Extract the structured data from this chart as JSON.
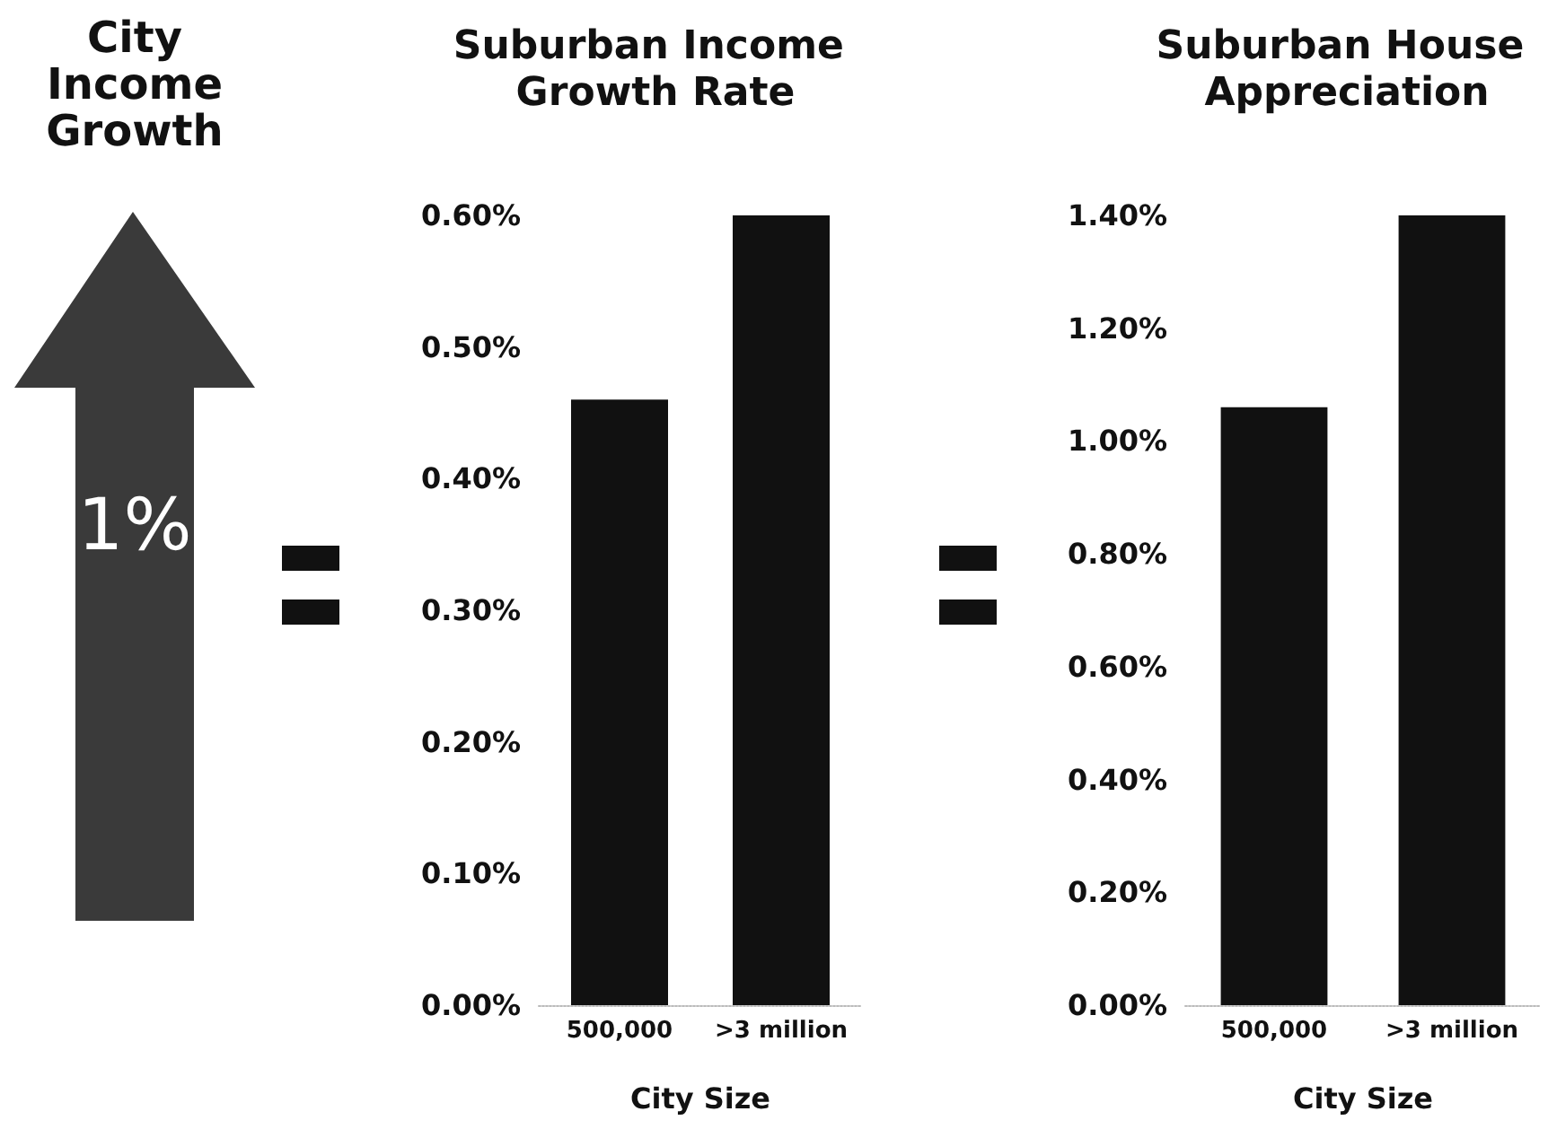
{
  "chart_data": [
    {
      "type": "other",
      "title": "City Income Growth",
      "annotations": [
        "1%"
      ]
    },
    {
      "type": "bar",
      "title": "Suburban Income Growth Rate",
      "xlabel": "City Size",
      "categories": [
        "500,000",
        ">3 million"
      ],
      "values": [
        0.46,
        0.6
      ],
      "color": "#111111",
      "ylim": [
        0,
        0.6
      ],
      "yticks": [
        {
          "value": 0,
          "label": "0.00%"
        },
        {
          "value": 0.1,
          "label": "0.10%"
        },
        {
          "value": 0.2,
          "label": "0.20%"
        },
        {
          "value": 0.3,
          "label": "0.30%"
        },
        {
          "value": 0.4,
          "label": "0.40%"
        },
        {
          "value": 0.5,
          "label": "0.50%"
        },
        {
          "value": 0.6,
          "label": "0.60%"
        }
      ],
      "grid": false
    },
    {
      "type": "bar",
      "title": "Suburban House Appreciation",
      "xlabel": "City Size",
      "categories": [
        "500,000",
        ">3 million"
      ],
      "values": [
        1.06,
        1.4
      ],
      "color": "#111111",
      "ylim": [
        0,
        1.4
      ],
      "yticks": [
        {
          "value": 0,
          "label": "0.00%"
        },
        {
          "value": 0.2,
          "label": "0.20%"
        },
        {
          "value": 0.4,
          "label": "0.40%"
        },
        {
          "value": 0.6,
          "label": "0.60%"
        },
        {
          "value": 0.8,
          "label": "0.80%"
        },
        {
          "value": 1,
          "label": "1.00%"
        },
        {
          "value": 1.2,
          "label": "1.20%"
        },
        {
          "value": 1.4,
          "label": "1.40%"
        }
      ],
      "grid": false
    }
  ]
}
